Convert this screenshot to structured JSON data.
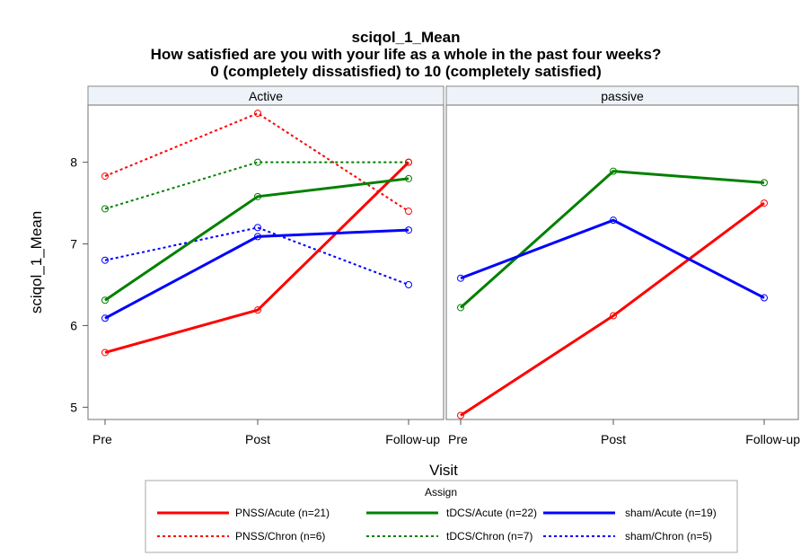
{
  "chart_data": {
    "type": "line",
    "title": "sciqol_1_Mean",
    "subtitle_lines": [
      "How satisfied are you with your life as a whole in the past four weeks?",
      "0 (completely dissatisfied) to 10 (completely satisfied)"
    ],
    "xlabel": "Visit",
    "ylabel": "sciqol_1_Mean",
    "categories": [
      "Pre",
      "Post",
      "Follow-up"
    ],
    "ylim": [
      4.85,
      8.7
    ],
    "yticks": [
      "5",
      "6",
      "7",
      "8"
    ],
    "grid": false,
    "legend": {
      "title": "Assign",
      "placement": "bottom"
    },
    "panels": [
      {
        "name": "Active",
        "series": [
          {
            "name": "PNSS/Acute (n=21)",
            "color": "#ff0000",
            "dash": "solid",
            "values": [
              5.67,
              6.19,
              8.0
            ]
          },
          {
            "name": "tDCS/Acute (n=22)",
            "color": "#008000",
            "dash": "solid",
            "values": [
              6.31,
              7.58,
              7.8
            ]
          },
          {
            "name": "sham/Acute (n=19)",
            "color": "#0000ff",
            "dash": "solid",
            "values": [
              6.09,
              7.09,
              7.17
            ]
          },
          {
            "name": "PNSS/Chron (n=6)",
            "color": "#ff0000",
            "dash": "dotted",
            "values": [
              7.83,
              8.6,
              7.4
            ]
          },
          {
            "name": "tDCS/Chron (n=7)",
            "color": "#008000",
            "dash": "dotted",
            "values": [
              7.43,
              8.0,
              8.0
            ]
          },
          {
            "name": "sham/Chron (n=5)",
            "color": "#0000ff",
            "dash": "dotted",
            "values": [
              6.8,
              7.2,
              6.5
            ]
          }
        ]
      },
      {
        "name": "passive",
        "series": [
          {
            "name": "PNSS/Acute (n=21)",
            "color": "#ff0000",
            "dash": "solid",
            "values": [
              4.9,
              6.12,
              7.5
            ]
          },
          {
            "name": "tDCS/Acute (n=22)",
            "color": "#008000",
            "dash": "solid",
            "values": [
              6.22,
              7.89,
              7.75
            ]
          },
          {
            "name": "sham/Acute (n=19)",
            "color": "#0000ff",
            "dash": "solid",
            "values": [
              6.58,
              7.29,
              6.34
            ]
          }
        ]
      }
    ],
    "legend_entries": [
      {
        "name": "PNSS/Acute (n=21)",
        "color": "#ff0000",
        "dash": "solid"
      },
      {
        "name": "tDCS/Acute (n=22)",
        "color": "#008000",
        "dash": "solid"
      },
      {
        "name": "sham/Acute (n=19)",
        "color": "#0000ff",
        "dash": "solid"
      },
      {
        "name": "PNSS/Chron (n=6)",
        "color": "#ff0000",
        "dash": "dotted"
      },
      {
        "name": "tDCS/Chron (n=7)",
        "color": "#008000",
        "dash": "dotted"
      },
      {
        "name": "sham/Chron (n=5)",
        "color": "#0000ff",
        "dash": "dotted"
      }
    ]
  },
  "colors": {
    "strip_background": "#eef2f9",
    "panel_border": "#888888"
  }
}
